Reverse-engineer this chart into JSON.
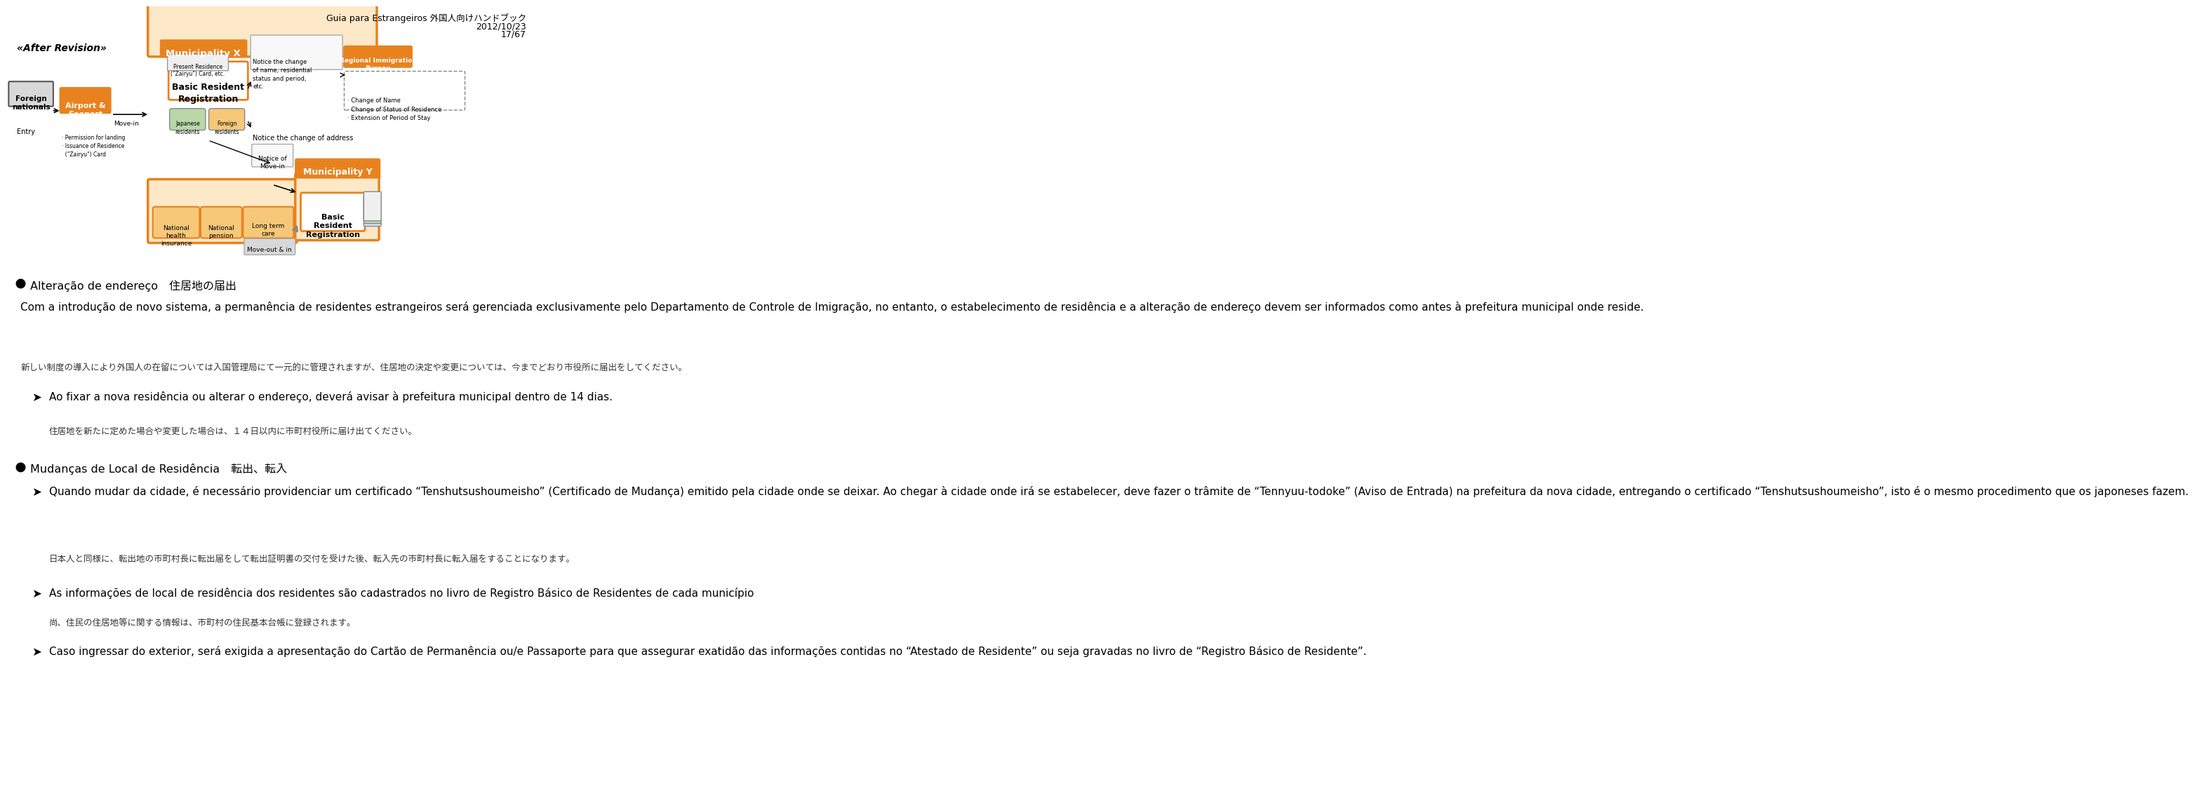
{
  "header_title": "Guia para Estrangeiros 外国人向けハンドブック",
  "header_date": "2012/10/23",
  "header_page": "17/67",
  "bg_color": "#ffffff",
  "section1_title": "Alteração de endereço　住居地の届出",
  "section1_para1": "Com a introdução de novo sistema, a permanência de residentes estrangeiros será gerenciada exclusivamente pelo Departamento de Controle de Imigração, no entanto, o estabelecimento de residência e a alteração de endereço devem ser informados como antes à prefeitura municipal onde reside.",
  "section1_jp1": "新しい制度の導入により外国人の在留については入国管理局にて一元的に管理されますが、住居地の決定や変更については、今までどおり市役所に届出をしてください。",
  "section1_sub1_pt": "Ao fixar a nova residência ou alterar o endereço, deverá avisar à prefeitura municipal dentro de 14 dias.",
  "section1_sub1_jp": "住居地を新たに定めた場合や変更した場合は、１４日以内に市町村役所に届け出てください。",
  "section2_title": "Mudanças de Local de Residência　転出、転入",
  "section2_sub1_pt": "Quando mudar da cidade, é necessário providenciar um certificado “Tenshutsushoumeisho” (Certificado de Mudança) emitido pela cidade onde se deixar. Ao chegar à cidade onde irá se estabelecer, deve fazer o trâmite de “Tennyuu-todoke” (Aviso de Entrada) na prefeitura da nova cidade, entregando o certificado “Tenshutsushoumeisho”, isto é o mesmo procedimento que os japoneses fazem.",
  "section2_sub1_jp": "日本人と同様に、転出地の市町村長に転出届をして転出証明書の交付を受けた後、転入先の市町村長に転入届をすることになります。",
  "section2_sub2_pt": "As informações de local de residência dos residentes são cadastrados no livro de Registro Básico de Residentes de cada município",
  "section2_sub2_jp": "尚、住民の住居地等に関する情報は、市町村の住民基本台帳に登録されます。",
  "section2_sub3_pt": "Caso ingressar do exterior, será exigida a apresentação do Cartão de Permanência ou/e Passaporte para que assegurar exatidão das informações contidas no “Atestado de Residente” ou seja gravadas no livro de “Registro Básico de Residente”.",
  "text_color": "#000000",
  "jp_color": "#333333",
  "title_color": "#000000",
  "header_color": "#000000"
}
